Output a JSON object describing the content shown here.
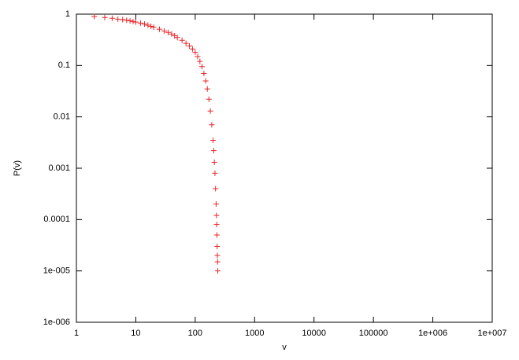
{
  "chart_data": {
    "type": "scatter",
    "x_label": "v",
    "y_label": "P(v)",
    "xlog": true,
    "ylog": true,
    "marker": "+",
    "xlim": [
      1,
      10000000
    ],
    "xticks": [
      1,
      10,
      100,
      1000,
      10000,
      100000,
      {
        "value": 1000000,
        "label": "1e+006"
      },
      {
        "value": 10000000,
        "label": "1e+007"
      }
    ],
    "ylim": [
      1e-06,
      1
    ],
    "yticks": [
      1,
      0.1,
      0.01,
      0.001,
      0.0001,
      {
        "value": 1e-05,
        "label": "1e-005"
      },
      {
        "value": 1e-06,
        "label": "1e-006"
      }
    ],
    "series": [
      {
        "color": "#e8262a",
        "x": [
          2,
          3,
          4,
          5,
          6,
          7,
          8,
          9,
          10,
          12,
          14,
          16,
          18,
          20,
          25,
          30,
          35,
          40,
          45,
          50,
          60,
          70,
          80,
          90,
          100,
          110,
          120,
          130,
          140,
          150,
          160,
          170,
          180,
          190,
          200,
          205,
          210,
          215,
          220,
          225,
          228,
          230,
          232,
          234,
          236,
          238,
          240
        ],
        "values": [
          0.9,
          0.86,
          0.83,
          0.8,
          0.78,
          0.76,
          0.74,
          0.72,
          0.7,
          0.67,
          0.64,
          0.61,
          0.58,
          0.56,
          0.51,
          0.47,
          0.44,
          0.41,
          0.38,
          0.35,
          0.31,
          0.27,
          0.24,
          0.21,
          0.18,
          0.15,
          0.12,
          0.095,
          0.07,
          0.05,
          0.035,
          0.022,
          0.013,
          0.007,
          0.0035,
          0.0022,
          0.0013,
          0.0008,
          0.0004,
          0.0002,
          0.00012,
          8e-05,
          5e-05,
          3e-05,
          2e-05,
          1.5e-05,
          1e-05
        ]
      }
    ]
  }
}
